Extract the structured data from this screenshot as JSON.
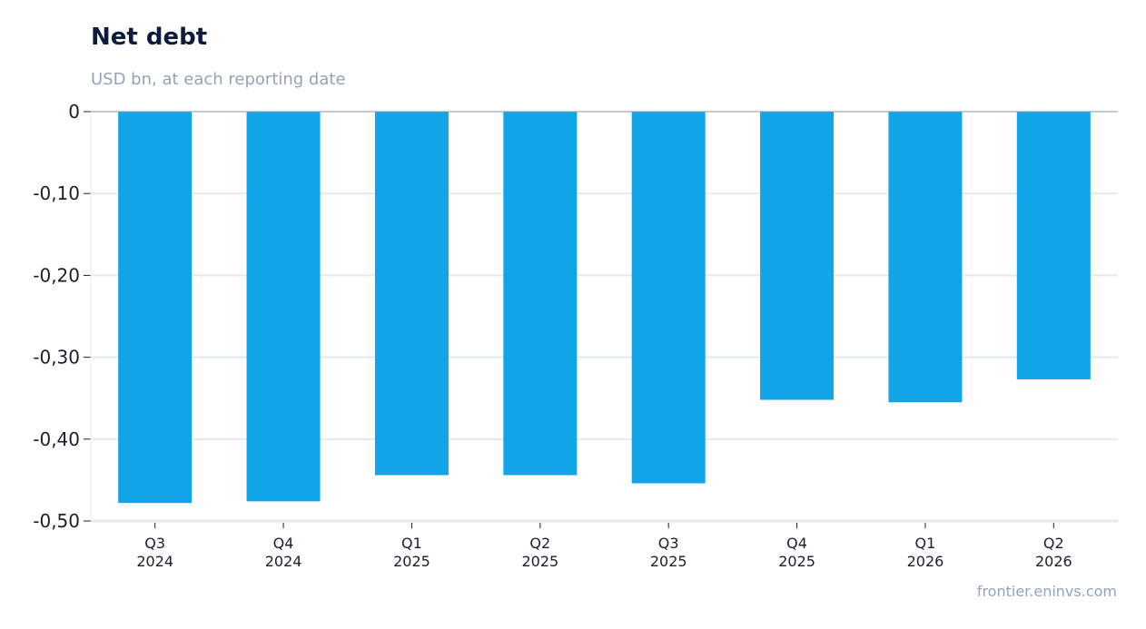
{
  "title": "Net debt",
  "subtitle": "USD bn, at each reporting date",
  "source": "frontier.eninvs.com",
  "colors": {
    "bar": "#11a5e8",
    "grid": "#e4e9f0",
    "zero_line": "#8a96a6",
    "axis": "#1a1f2e"
  },
  "chart_data": {
    "type": "bar",
    "categories": [
      [
        "Q3",
        "2024"
      ],
      [
        "Q4",
        "2024"
      ],
      [
        "Q1",
        "2025"
      ],
      [
        "Q2",
        "2025"
      ],
      [
        "Q3",
        "2025"
      ],
      [
        "Q4",
        "2025"
      ],
      [
        "Q1",
        "2026"
      ],
      [
        "Q2",
        "2026"
      ]
    ],
    "values": [
      -0.478,
      -0.476,
      -0.444,
      -0.444,
      -0.454,
      -0.352,
      -0.355,
      -0.327
    ],
    "ylim": [
      -0.5,
      0
    ],
    "yticks": [
      0,
      -0.1,
      -0.2,
      -0.3,
      -0.4,
      -0.5
    ],
    "ytick_labels": [
      "0",
      "-0,10",
      "-0,20",
      "-0,30",
      "-0,40",
      "-0,50"
    ],
    "grid": true
  }
}
